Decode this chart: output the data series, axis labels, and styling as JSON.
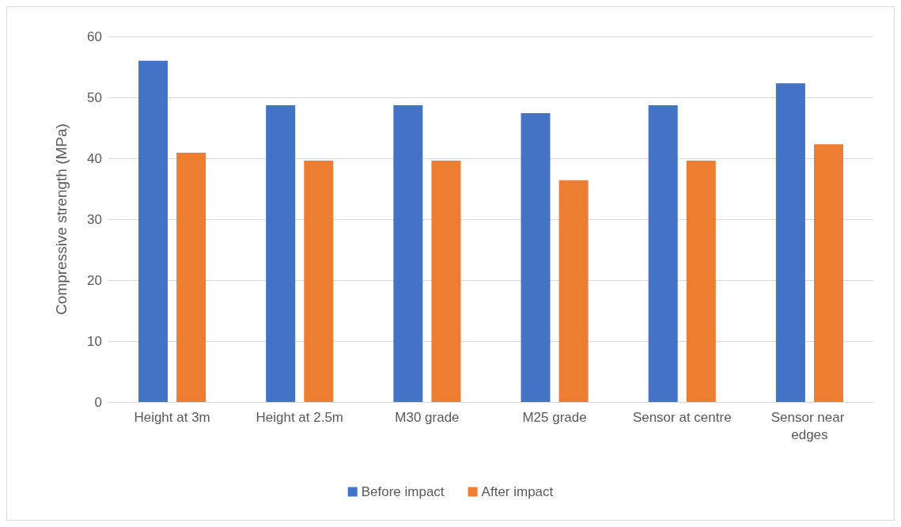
{
  "chart_data": {
    "type": "bar",
    "ylabel": "Compressive strength (MPa)",
    "categories": [
      "Height at 3m",
      "Height at 2.5m",
      "M30 grade",
      "M25 grade",
      "Sensor at centre",
      "Sensor near edges"
    ],
    "series": [
      {
        "name": "Before impact",
        "color": "#4472c4",
        "values": [
          56,
          48.7,
          48.7,
          47.4,
          48.7,
          52.3
        ]
      },
      {
        "name": "After impact",
        "color": "#ed7d31",
        "values": [
          40.9,
          39.6,
          39.6,
          36.4,
          39.6,
          42.3
        ]
      }
    ],
    "ylim": [
      0,
      60
    ],
    "yticks": [
      0,
      10,
      20,
      30,
      40,
      50,
      60
    ],
    "grid": "y",
    "legend": "bottom"
  }
}
